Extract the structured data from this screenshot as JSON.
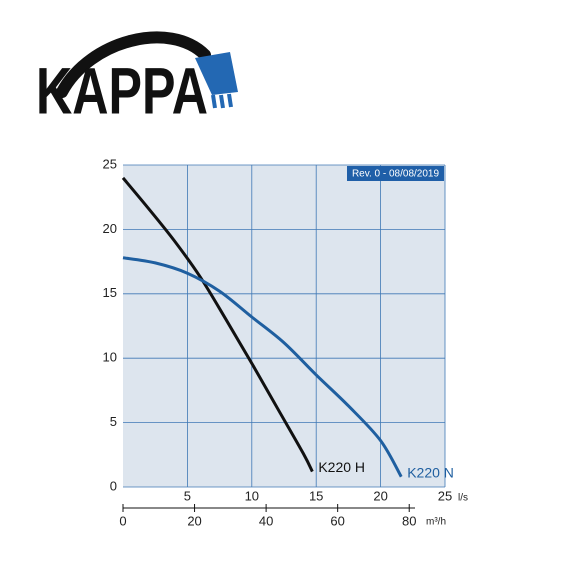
{
  "logo": "KAPPA",
  "chart_data": {
    "type": "line",
    "annotation": "Rev. 0 - 08/08/2019",
    "xlabel": "l/s",
    "x2label": "m³/h",
    "xlim": [
      0,
      25
    ],
    "xticks": [
      5,
      10,
      15,
      20,
      25
    ],
    "ylim": [
      0,
      25
    ],
    "yticks": [
      0,
      5,
      10,
      15,
      20,
      25
    ],
    "x2lim": [
      0,
      90
    ],
    "x2ticks": [
      0,
      20,
      40,
      60,
      80
    ],
    "grid": true,
    "series": [
      {
        "name": "K220 H",
        "color": "#111111",
        "x": [
          0,
          2,
          4,
          6,
          8,
          10,
          12,
          14,
          14.7
        ],
        "values": [
          24,
          21.6,
          19.1,
          16.3,
          13.0,
          9.6,
          6.1,
          2.6,
          1.2
        ]
      },
      {
        "name": "K220 N",
        "color": "#1f5fa0",
        "x": [
          0,
          2.5,
          5,
          7.5,
          10,
          12.5,
          15,
          17.5,
          20,
          21.6
        ],
        "values": [
          17.8,
          17.4,
          16.6,
          15.2,
          13.2,
          11.2,
          8.7,
          6.3,
          3.6,
          0.8
        ]
      }
    ]
  }
}
